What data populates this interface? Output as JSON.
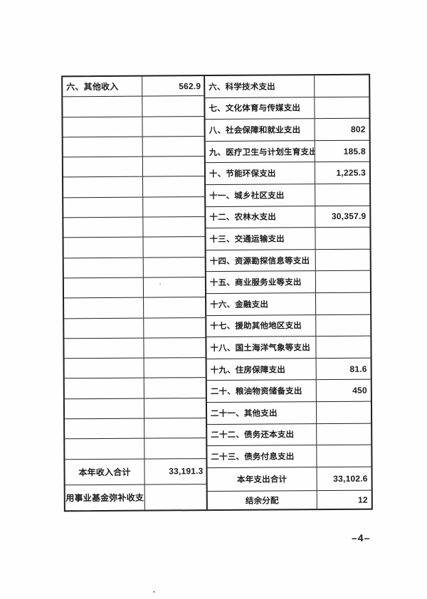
{
  "page": {
    "number_label": "–4–"
  },
  "colors": {
    "ink": "#1b1b1b",
    "border": "#1f1f1f",
    "paper": "#fefefe"
  },
  "table": {
    "left_rows": [
      {
        "label": "六、其他收入",
        "value": "562.9",
        "type": "item"
      },
      {
        "label": "",
        "value": "",
        "type": "item"
      },
      {
        "label": "",
        "value": "",
        "type": "item"
      },
      {
        "label": "",
        "value": "",
        "type": "item"
      },
      {
        "label": "",
        "value": "",
        "type": "item"
      },
      {
        "label": "",
        "value": "",
        "type": "item"
      },
      {
        "label": "",
        "value": "",
        "type": "item"
      },
      {
        "label": "",
        "value": "",
        "type": "item"
      },
      {
        "label": "",
        "value": "",
        "type": "item"
      },
      {
        "label": "",
        "value": "",
        "type": "item"
      },
      {
        "label": "",
        "value": "",
        "type": "item"
      },
      {
        "label": "",
        "value": "",
        "type": "item"
      },
      {
        "label": "",
        "value": "",
        "type": "item"
      },
      {
        "label": "",
        "value": "",
        "type": "item"
      },
      {
        "label": "",
        "value": "",
        "type": "item"
      },
      {
        "label": "",
        "value": "",
        "type": "item"
      },
      {
        "label": "",
        "value": "",
        "type": "item"
      },
      {
        "label": "",
        "value": "",
        "type": "item"
      },
      {
        "label": "",
        "value": "",
        "type": "item"
      },
      {
        "label": "本年收入合计",
        "value": "33,191.3",
        "type": "total"
      },
      {
        "label": "用事业基金弥补收支",
        "value": "",
        "type": "total"
      }
    ],
    "right_rows": [
      {
        "label": "六、科学技术支出",
        "value": "",
        "type": "item"
      },
      {
        "label": "七、文化体育与传媒支出",
        "value": "",
        "type": "item"
      },
      {
        "label": "八、社会保障和就业支出",
        "value": "802",
        "type": "item"
      },
      {
        "label": "九、医疗卫生与计划生育支出",
        "value": "185.8",
        "type": "item"
      },
      {
        "label": "十、节能环保支出",
        "value": "1,225.3",
        "type": "item"
      },
      {
        "label": "十一、城乡社区支出",
        "value": "",
        "type": "item"
      },
      {
        "label": "十二、农林水支出",
        "value": "30,357.9",
        "type": "item"
      },
      {
        "label": "十三、交通运输支出",
        "value": "",
        "type": "item"
      },
      {
        "label": "十四、资源勘探信息等支出",
        "value": "",
        "type": "item"
      },
      {
        "label": "十五、商业服务业等支出",
        "value": "",
        "type": "item"
      },
      {
        "label": "十六、金融支出",
        "value": "",
        "type": "item"
      },
      {
        "label": "十七、援助其他地区支出",
        "value": "",
        "type": "item"
      },
      {
        "label": "十八、国土海洋气象等支出",
        "value": "",
        "type": "item"
      },
      {
        "label": "十九、住房保障支出",
        "value": "81.6",
        "type": "item"
      },
      {
        "label": "二十、粮油物资储备支出",
        "value": "450",
        "type": "item"
      },
      {
        "label": "二十一、其他支出",
        "value": "",
        "type": "item"
      },
      {
        "label": "二十二、债务还本支出",
        "value": "",
        "type": "item"
      },
      {
        "label": "二十三、债务付息支出",
        "value": "",
        "type": "item"
      },
      {
        "label": "本年支出合计",
        "value": "33,102.6",
        "type": "total"
      },
      {
        "label": "结余分配",
        "value": "12",
        "type": "total"
      }
    ]
  }
}
